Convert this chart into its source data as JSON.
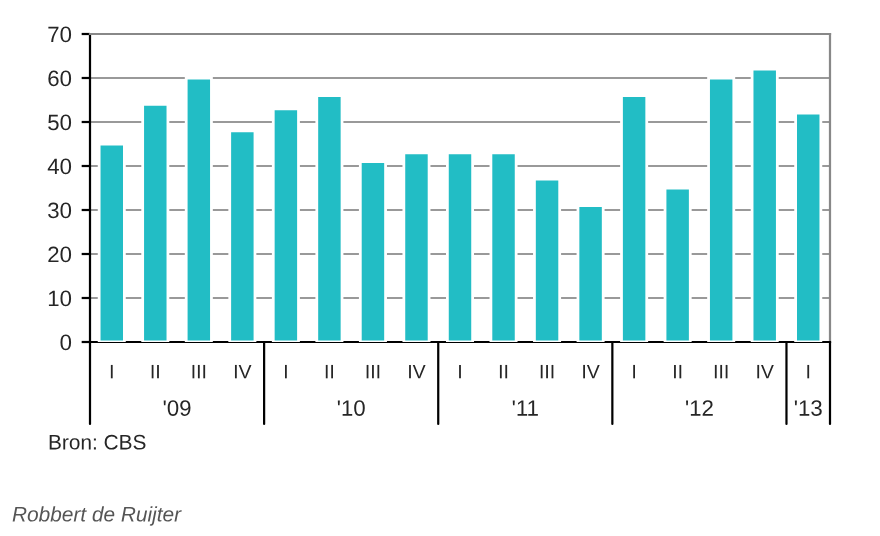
{
  "chart_data": {
    "type": "bar",
    "categories": [
      "I",
      "II",
      "III",
      "IV",
      "I",
      "II",
      "III",
      "IV",
      "I",
      "II",
      "III",
      "IV",
      "I",
      "II",
      "III",
      "IV",
      "I"
    ],
    "values": [
      45,
      54,
      60,
      48,
      53,
      56,
      41,
      43,
      43,
      43,
      37,
      31,
      56,
      35,
      60,
      62,
      52
    ],
    "color": "#22bdc5",
    "ylim": [
      0,
      70
    ],
    "yticks": [
      0,
      10,
      20,
      30,
      40,
      50,
      60,
      70
    ],
    "grid": "y",
    "annotations": [
      "'09",
      "'10",
      "'11",
      "'12",
      "'13",
      "Bron: CBS",
      "Robbert de Ruijter"
    ]
  }
}
